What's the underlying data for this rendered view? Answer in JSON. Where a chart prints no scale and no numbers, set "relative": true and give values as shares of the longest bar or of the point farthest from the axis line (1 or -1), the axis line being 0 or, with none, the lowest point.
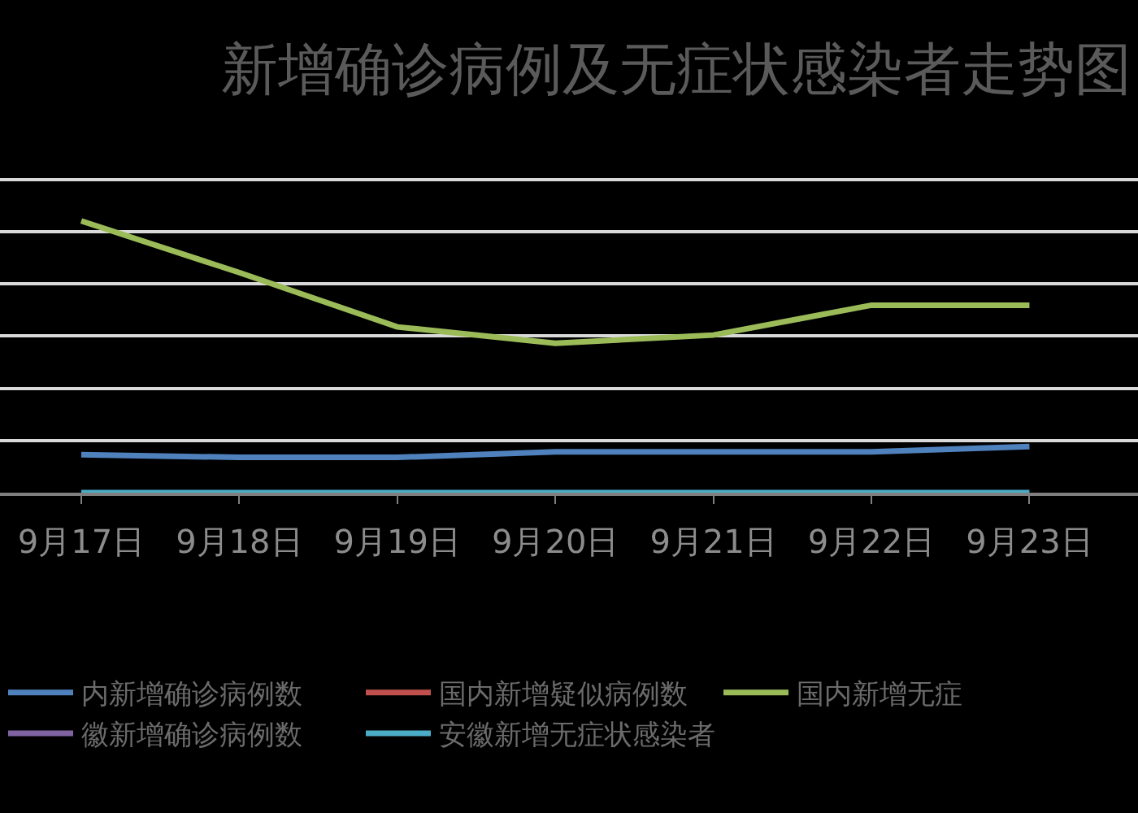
{
  "chart_data": {
    "type": "line",
    "title": "新增确诊病例及无症状感染者走势图",
    "categories": [
      "9月17日",
      "9月18日",
      "9月19日",
      "9月20日",
      "9月21日",
      "9月22日",
      "9月23日"
    ],
    "series": [
      {
        "name": "内新增确诊病例数",
        "color": "#4f81bd",
        "values": [
          0.14,
          0.13,
          0.13,
          0.15,
          0.15,
          0.15,
          0.17
        ]
      },
      {
        "name": "国内新增疑似病例数",
        "color": "#c0504d",
        "values": [
          null,
          null,
          null,
          null,
          null,
          null,
          null
        ]
      },
      {
        "name": "国内新增无症",
        "color": "#9bbb59",
        "values": [
          1,
          0.81,
          0.61,
          0.55,
          0.58,
          0.69,
          0.69
        ]
      },
      {
        "name": "徽新增确诊病例数",
        "color": "#8064a2",
        "values": [
          null,
          null,
          null,
          null,
          null,
          null,
          null
        ]
      },
      {
        "name": "安徽新增无症状感染者",
        "color": "#4bacc6",
        "values": [
          0,
          0,
          0,
          0,
          0,
          0,
          0
        ]
      }
    ],
    "relative": true,
    "grid": "y",
    "legend": "bottom"
  }
}
